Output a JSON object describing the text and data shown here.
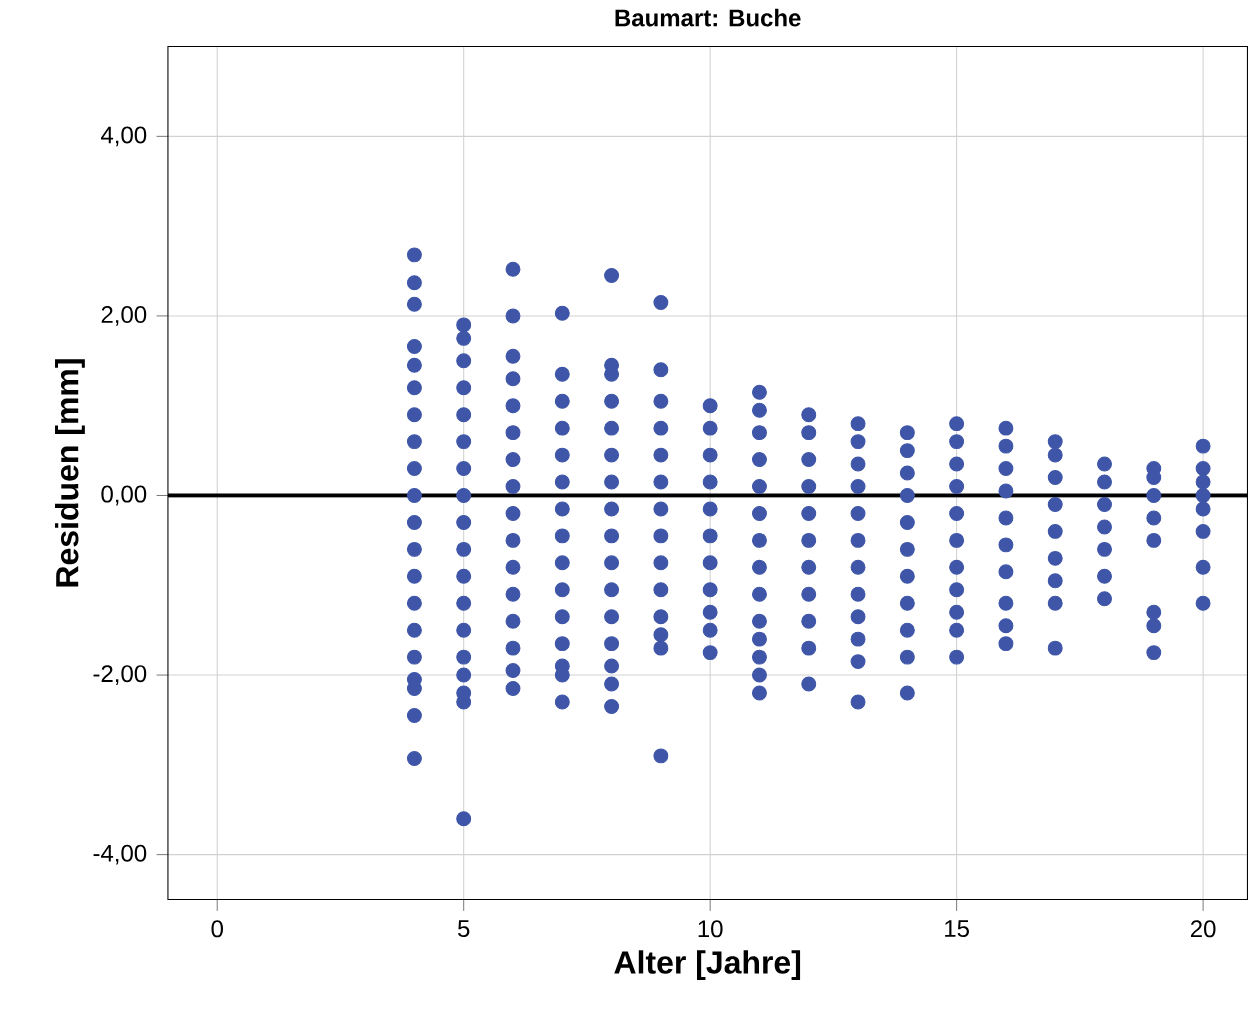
{
  "chart_data": {
    "type": "scatter",
    "title": "Baumart: Buche",
    "xlabel": "Alter [Jahre]",
    "ylabel": "Residuen [mm]",
    "xlim": [
      -1,
      20.9
    ],
    "ylim": [
      -4.5,
      5
    ],
    "xticks": [
      0,
      5,
      10,
      15,
      20
    ],
    "yticks": [
      {
        "value": -4,
        "label": "-4,00"
      },
      {
        "value": -2,
        "label": "-2,00"
      },
      {
        "value": 0,
        "label": "0,00"
      },
      {
        "value": 2,
        "label": "2,00"
      },
      {
        "value": 4,
        "label": "4,00"
      }
    ],
    "grid": true,
    "marker": "circle",
    "ref_lines": [
      {
        "axis": "y",
        "value": 0,
        "color": "#000000"
      }
    ],
    "series": [
      {
        "color": "#3f56a8",
        "x": [
          4,
          4,
          4,
          4,
          4,
          4,
          4,
          4,
          4,
          4,
          4,
          4,
          4,
          4,
          4,
          4,
          4,
          4,
          4,
          4,
          5,
          5,
          5,
          5,
          5,
          5,
          5,
          5,
          5,
          5,
          5,
          5,
          5,
          5,
          5,
          5,
          5,
          5,
          6,
          6,
          6,
          6,
          6,
          6,
          6,
          6,
          6,
          6,
          6,
          6,
          6,
          6,
          6,
          6,
          7,
          7,
          7,
          7,
          7,
          7,
          7,
          7,
          7,
          7,
          7,
          7,
          7,
          7,
          7,
          8,
          8,
          8,
          8,
          8,
          8,
          8,
          8,
          8,
          8,
          8,
          8,
          8,
          8,
          8,
          8,
          9,
          9,
          9,
          9,
          9,
          9,
          9,
          9,
          9,
          9,
          9,
          9,
          9,
          9,
          10,
          10,
          10,
          10,
          10,
          10,
          10,
          10,
          10,
          10,
          10,
          11,
          11,
          11,
          11,
          11,
          11,
          11,
          11,
          11,
          11,
          11,
          11,
          11,
          11,
          12,
          12,
          12,
          12,
          12,
          12,
          12,
          12,
          12,
          12,
          12,
          13,
          13,
          13,
          13,
          13,
          13,
          13,
          13,
          13,
          13,
          13,
          13,
          14,
          14,
          14,
          14,
          14,
          14,
          14,
          14,
          14,
          14,
          14,
          15,
          15,
          15,
          15,
          15,
          15,
          15,
          15,
          15,
          15,
          15,
          16,
          16,
          16,
          16,
          16,
          16,
          16,
          16,
          16,
          16,
          17,
          17,
          17,
          17,
          17,
          17,
          17,
          17,
          17,
          18,
          18,
          18,
          18,
          18,
          18,
          18,
          19,
          19,
          19,
          19,
          19,
          19,
          19,
          19,
          20,
          20,
          20,
          20,
          20,
          20,
          20,
          20
        ],
        "values": [
          2.68,
          2.37,
          2.13,
          1.66,
          1.45,
          1.2,
          0.9,
          0.6,
          0.3,
          0,
          -0.3,
          -0.6,
          -0.9,
          -1.2,
          -1.5,
          -1.8,
          -2.05,
          -2.15,
          -2.45,
          -2.93,
          1.9,
          1.75,
          1.5,
          1.2,
          0.9,
          0.6,
          0.3,
          0,
          -0.3,
          -0.6,
          -0.9,
          -1.2,
          -1.5,
          -1.8,
          -2.0,
          -2.2,
          -2.3,
          -3.6,
          2.52,
          2.0,
          1.55,
          1.3,
          1.0,
          0.7,
          0.4,
          0.1,
          -0.2,
          -0.5,
          -0.8,
          -1.1,
          -1.4,
          -1.7,
          -1.95,
          -2.15,
          2.03,
          1.35,
          1.05,
          0.75,
          0.45,
          0.15,
          -0.15,
          -0.45,
          -0.75,
          -1.05,
          -1.35,
          -1.65,
          -1.9,
          -2.0,
          -2.3,
          2.45,
          1.45,
          1.35,
          1.05,
          0.75,
          0.45,
          0.15,
          -0.15,
          -0.45,
          -0.75,
          -1.05,
          -1.35,
          -1.65,
          -1.9,
          -2.1,
          -2.35,
          2.15,
          1.4,
          1.05,
          0.75,
          0.45,
          0.15,
          -0.15,
          -0.45,
          -0.75,
          -1.05,
          -1.35,
          -1.55,
          -1.7,
          -2.9,
          1.0,
          0.75,
          0.45,
          0.15,
          -0.15,
          -0.45,
          -0.75,
          -1.05,
          -1.3,
          -1.5,
          -1.75,
          1.15,
          0.95,
          0.7,
          0.4,
          0.1,
          -0.2,
          -0.5,
          -0.8,
          -1.1,
          -1.4,
          -1.6,
          -1.8,
          -2.0,
          -2.2,
          0.9,
          0.7,
          0.4,
          0.1,
          -0.2,
          -0.5,
          -0.8,
          -1.1,
          -1.4,
          -1.7,
          -2.1,
          0.8,
          0.6,
          0.35,
          0.1,
          -0.2,
          -0.5,
          -0.8,
          -1.1,
          -1.35,
          -1.6,
          -1.85,
          -2.3,
          0.7,
          0.5,
          0.25,
          0,
          -0.3,
          -0.6,
          -0.9,
          -1.2,
          -1.5,
          -1.8,
          -2.2,
          0.8,
          0.6,
          0.35,
          0.1,
          -0.2,
          -0.5,
          -0.8,
          -1.05,
          -1.3,
          -1.5,
          -1.8,
          0.75,
          0.55,
          0.3,
          0.05,
          -0.25,
          -0.55,
          -0.85,
          -1.2,
          -1.45,
          -1.65,
          0.6,
          0.45,
          0.2,
          -0.1,
          -0.4,
          -0.7,
          -0.95,
          -1.2,
          -1.7,
          0.35,
          0.15,
          -0.1,
          -0.35,
          -0.6,
          -0.9,
          -1.15,
          0.3,
          0.2,
          0.0,
          -0.25,
          -0.5,
          -1.3,
          -1.45,
          -1.75,
          0.55,
          0.3,
          0.15,
          0,
          -0.15,
          -0.4,
          -0.8,
          -1.2
        ]
      }
    ]
  }
}
